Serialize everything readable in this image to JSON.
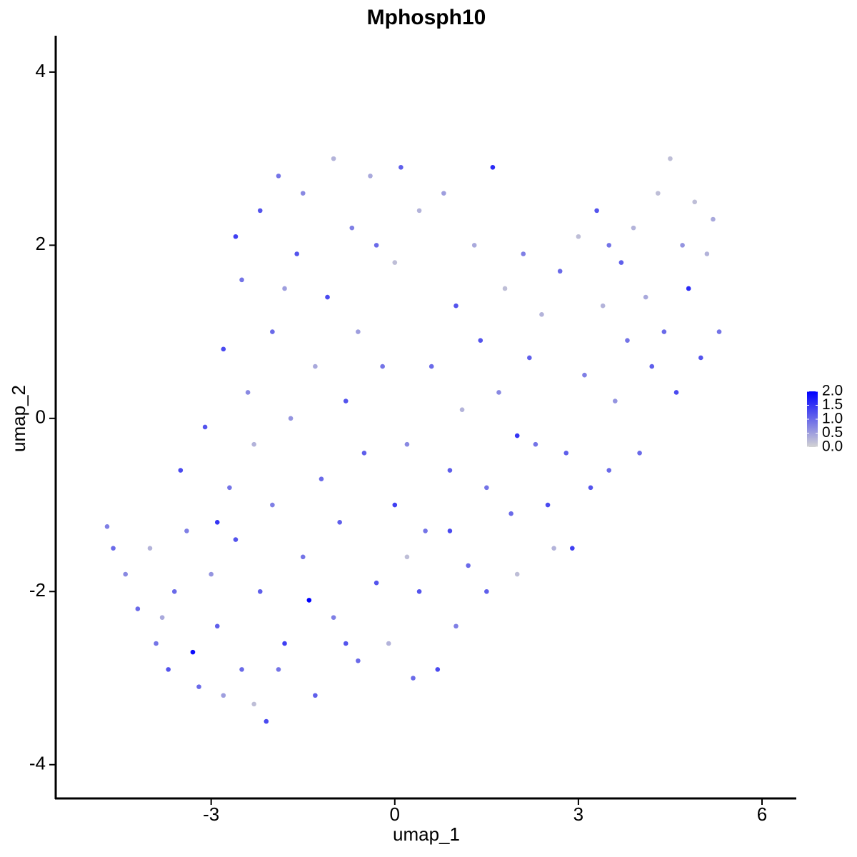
{
  "chart_data": {
    "type": "scatter",
    "title": "Mphosph10",
    "xlabel": "umap_1",
    "ylabel": "umap_2",
    "x": [
      -4.7,
      -4.6,
      -4.4,
      -4.2,
      -4.0,
      -3.9,
      -3.7,
      -3.6,
      -3.5,
      -3.4,
      -3.3,
      -3.2,
      -3.1,
      -3.0,
      -2.9,
      -2.8,
      -2.8,
      -2.7,
      -2.6,
      -2.5,
      -2.5,
      -2.4,
      -2.3,
      -2.2,
      -2.2,
      -2.1,
      -2.0,
      -2.0,
      -1.9,
      -1.8,
      -1.7,
      -1.6,
      -1.5,
      -1.5,
      -1.4,
      -1.3,
      -1.3,
      -1.2,
      -1.1,
      -1.0,
      -1.0,
      -0.9,
      -0.8,
      -0.7,
      -0.6,
      -0.6,
      -0.5,
      -0.4,
      -0.3,
      -0.2,
      -0.1,
      0.0,
      0.0,
      0.1,
      0.2,
      0.3,
      0.4,
      0.4,
      0.5,
      0.6,
      0.7,
      0.8,
      0.9,
      1.0,
      1.0,
      1.1,
      1.2,
      1.3,
      1.4,
      1.5,
      1.5,
      1.6,
      1.7,
      1.8,
      1.9,
      2.0,
      2.1,
      2.2,
      2.3,
      2.4,
      2.5,
      2.6,
      2.7,
      2.8,
      2.9,
      3.0,
      3.1,
      3.2,
      3.3,
      3.4,
      3.5,
      3.6,
      3.7,
      3.8,
      3.9,
      4.0,
      4.1,
      4.2,
      4.3,
      4.4,
      4.5,
      4.6,
      4.7,
      4.8,
      4.9,
      5.0,
      5.1,
      5.2,
      5.3,
      -3.8,
      -2.9,
      -2.3,
      -1.9,
      -0.8,
      0.2,
      0.9,
      -1.8,
      -2.6,
      -0.3,
      2.0,
      3.5
    ],
    "y": [
      -1.25,
      -1.5,
      -1.8,
      -2.2,
      -1.5,
      -2.6,
      -2.9,
      -2.0,
      -0.6,
      -1.3,
      -2.7,
      -3.1,
      -0.1,
      -1.8,
      -2.4,
      0.8,
      -3.2,
      -0.8,
      -1.4,
      1.6,
      -2.9,
      0.3,
      -3.3,
      -2.0,
      2.4,
      -3.5,
      1.0,
      -1.0,
      2.8,
      -2.6,
      0.0,
      1.9,
      -1.6,
      2.6,
      -2.1,
      -3.2,
      0.6,
      -0.7,
      1.4,
      3.0,
      -2.3,
      -1.2,
      0.2,
      2.2,
      -2.8,
      1.0,
      -0.4,
      2.8,
      -1.9,
      0.6,
      -2.6,
      -1.0,
      1.8,
      2.9,
      -0.3,
      -3.0,
      -2.0,
      2.4,
      -1.3,
      0.6,
      -2.9,
      2.6,
      -0.6,
      1.3,
      -2.4,
      0.1,
      -1.7,
      2.0,
      0.9,
      -0.8,
      -2.0,
      2.9,
      0.3,
      1.5,
      -1.1,
      -1.8,
      1.9,
      0.7,
      -0.3,
      1.2,
      -1.0,
      -1.5,
      1.7,
      -0.4,
      -1.5,
      2.1,
      0.5,
      -0.8,
      2.4,
      1.3,
      -0.6,
      0.2,
      1.8,
      0.9,
      2.2,
      -0.4,
      1.4,
      0.6,
      2.6,
      1.0,
      3.0,
      0.3,
      2.0,
      1.5,
      2.5,
      0.7,
      1.9,
      2.3,
      1.0,
      -2.3,
      -1.2,
      -0.3,
      -2.9,
      -2.6,
      -1.6,
      -1.3,
      1.5,
      2.1,
      2.0,
      -0.2,
      2.0
    ],
    "values": [
      0.8,
      1.0,
      0.7,
      1.0,
      0.3,
      0.9,
      1.2,
      1.0,
      1.3,
      0.8,
      1.9,
      1.0,
      1.2,
      0.6,
      1.1,
      1.3,
      0.5,
      0.9,
      1.2,
      0.9,
      1.0,
      0.7,
      0.2,
      1.1,
      1.2,
      1.3,
      1.0,
      0.8,
      0.9,
      1.4,
      0.6,
      1.2,
      0.9,
      0.7,
      2.0,
      1.1,
      0.4,
      1.0,
      1.3,
      0.3,
      0.8,
      1.1,
      1.2,
      0.8,
      1.0,
      0.5,
      1.1,
      0.4,
      1.2,
      0.9,
      0.3,
      1.4,
      0.2,
      1.1,
      0.7,
      1.0,
      1.2,
      0.3,
      0.9,
      1.0,
      1.3,
      0.5,
      1.1,
      1.2,
      0.8,
      0.3,
      1.0,
      0.4,
      1.2,
      0.9,
      1.1,
      1.6,
      0.7,
      0.2,
      1.0,
      0.2,
      0.8,
      1.1,
      0.9,
      0.3,
      1.3,
      0.3,
      1.0,
      1.1,
      1.4,
      0.2,
      0.8,
      1.2,
      1.2,
      0.3,
      1.0,
      0.6,
      1.1,
      0.9,
      0.3,
      1.0,
      0.4,
      1.1,
      0.2,
      1.0,
      0.2,
      1.3,
      0.6,
      1.6,
      0.2,
      1.2,
      0.3,
      0.4,
      0.9,
      0.4,
      1.5,
      0.3,
      0.9,
      1.2,
      0.2,
      1.3,
      0.5,
      1.4,
      1.0,
      1.5,
      0.9
    ],
    "xlim": [
      -5.54,
      6.56
    ],
    "ylim": [
      -4.39,
      4.42
    ],
    "xticks": [
      -3,
      0,
      3,
      6
    ],
    "yticks": [
      -4,
      -2,
      0,
      2,
      4
    ],
    "colorbar": {
      "lim": [
        0,
        2.0
      ],
      "low_color": "#D3D3D3",
      "high_color": "#0000FF",
      "ticks": [
        {
          "value": 0,
          "label": "0.0"
        },
        {
          "value": 0.5,
          "label": "0.5"
        },
        {
          "value": 1,
          "label": "1.0"
        },
        {
          "value": 1.5,
          "label": "1.5"
        },
        {
          "value": 2,
          "label": "2.0"
        }
      ]
    }
  }
}
